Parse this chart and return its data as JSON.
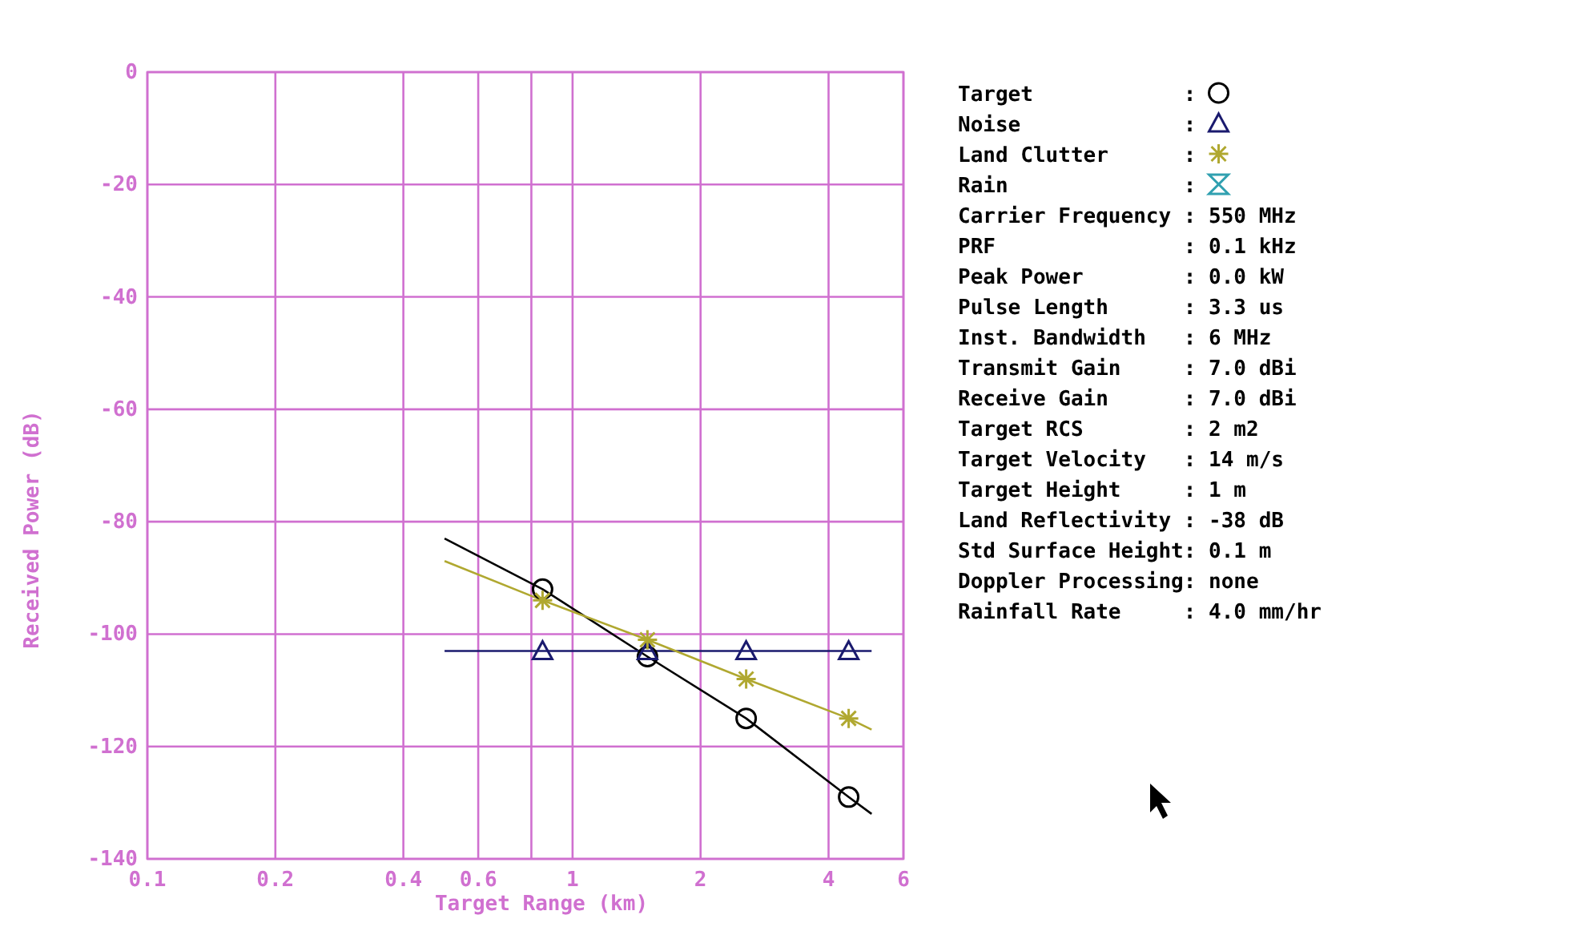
{
  "chart_data": {
    "type": "line",
    "xlabel": "Target Range (km)",
    "ylabel": "Received Power (dB)",
    "log": "x",
    "grid": true,
    "legend": "right",
    "xlim": [
      0.1,
      6
    ],
    "xticks": [
      0.1,
      0.2,
      0.4,
      0.6,
      {
        "value": 0.8,
        "label": null
      },
      1,
      2,
      4,
      6
    ],
    "ylim": [
      -140,
      0
    ],
    "yticks": [
      -140,
      -120,
      -100,
      -80,
      -60,
      -40,
      -20,
      0
    ],
    "series": [
      {
        "color": "#000000",
        "marker": "none",
        "x": [
          0.5,
          0.85,
          1.5,
          2.56,
          4.46,
          5.05
        ],
        "values": [
          -83,
          -92,
          -104,
          -115,
          -129,
          -132
        ]
      },
      {
        "color": "#1a1a6e",
        "marker": "none",
        "x": [
          0.5,
          5.05
        ],
        "values": [
          -103,
          -103
        ]
      },
      {
        "color": "#b0a830",
        "marker": "none",
        "x": [
          0.5,
          0.85,
          1.5,
          2.56,
          4.46,
          5.05
        ],
        "values": [
          -87,
          -94,
          -101,
          -108,
          -115,
          -117
        ]
      },
      {
        "type": "scatter",
        "name": "Target :",
        "color": "#000000",
        "marker": "circle",
        "x": [
          0.85,
          1.5,
          2.56,
          4.46
        ],
        "values": [
          -92,
          -104,
          -115,
          -129
        ]
      },
      {
        "type": "scatter",
        "name": "Noise :",
        "color": "#1a1a6e",
        "marker": "triangle",
        "x": [
          0.85,
          1.5,
          2.56,
          4.46
        ],
        "values": [
          -103,
          -103,
          -103,
          -103
        ]
      },
      {
        "type": "scatter",
        "name": "Land Clutter :",
        "color": "#b0a830",
        "marker": "cross",
        "x": [
          0.85,
          1.5,
          2.56,
          4.46
        ],
        "values": [
          -94,
          -101,
          -108,
          -115
        ]
      },
      {
        "type": "scatter",
        "name": "Rain :",
        "color": "#30a0b0",
        "marker": "hourglass"
      }
    ],
    "annotations": [
      "Carrier Frequency : 550 MHz",
      "PRF : 0.1 kHz",
      "Peak Power : 0.0 kW",
      "Pulse Length : 3.3 us",
      "Inst. Bandwidth : 6 MHz",
      "Transmit Gain : 7.0 dBi",
      "Receive Gain : 7.0 dBi",
      "Target RCS : 2 m2",
      "Target Velocity : 14 m/s",
      "Target Height : 1 m",
      "Land Reflectivity : -38 dB",
      "Std Surface Height: 0.1 m",
      "Doppler Processing: none",
      "Rainfall Rate : 4.0 mm/hr"
    ]
  }
}
